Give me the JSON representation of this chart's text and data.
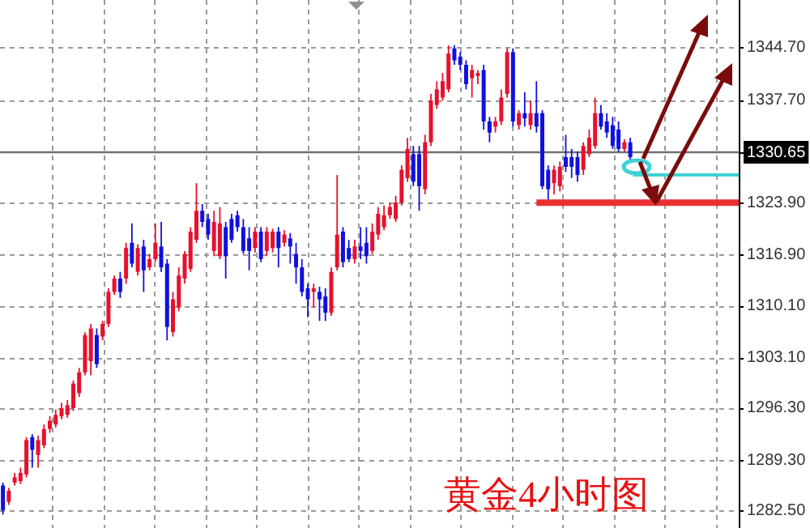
{
  "chart_data": {
    "type": "candlestick",
    "categories": [
      null,
      null,
      null,
      null,
      null,
      null,
      null,
      null,
      null,
      null,
      null,
      null,
      null,
      null,
      null,
      null,
      null,
      null,
      null,
      null,
      null,
      null,
      null,
      null,
      null,
      null,
      null,
      null,
      null,
      null,
      null,
      null,
      null,
      null,
      null,
      null,
      null,
      null,
      null,
      null,
      null,
      null,
      null,
      null,
      null,
      null,
      null,
      null,
      null,
      null,
      null,
      null,
      null,
      null,
      null,
      null,
      null,
      null,
      null,
      null,
      null,
      null,
      null,
      null,
      null,
      null,
      null,
      null,
      null,
      null,
      null,
      null,
      null,
      null,
      null,
      null,
      null,
      null,
      null,
      null,
      null,
      null,
      null,
      null,
      null,
      null,
      null,
      null,
      null,
      null,
      null,
      null,
      null,
      null,
      null,
      null,
      null,
      null,
      null,
      null,
      null,
      null,
      null,
      null,
      null,
      null,
      null,
      null,
      null,
      null,
      null,
      null,
      null,
      null,
      null,
      null,
      null,
      null,
      null,
      null,
      null,
      null,
      null,
      null,
      null,
      null
    ],
    "ohlc": [
      [
        1285.9,
        1286.3,
        1282.0,
        1282.6
      ],
      [
        1283.7,
        1285.6,
        1283.3,
        1285.2
      ],
      [
        1286.3,
        1287.6,
        1285.9,
        1287.0
      ],
      [
        1286.5,
        1288.3,
        1286.1,
        1287.6
      ],
      [
        1287.4,
        1292.4,
        1287.0,
        1292.0
      ],
      [
        1292.4,
        1292.8,
        1288.3,
        1290.7
      ],
      [
        1290.0,
        1292.6,
        1288.3,
        1292.0
      ],
      [
        1291.3,
        1294.1,
        1290.9,
        1293.5
      ],
      [
        1293.5,
        1295.2,
        1293.0,
        1294.6
      ],
      [
        1294.1,
        1296.1,
        1293.7,
        1295.4
      ],
      [
        1295.2,
        1297.0,
        1294.8,
        1296.3
      ],
      [
        1295.4,
        1297.4,
        1295.0,
        1296.7
      ],
      [
        1296.3,
        1300.0,
        1295.9,
        1299.6
      ],
      [
        1298.3,
        1301.7,
        1297.8,
        1301.1
      ],
      [
        1301.1,
        1306.5,
        1300.7,
        1306.1
      ],
      [
        1302.6,
        1307.6,
        1300.7,
        1307.0
      ],
      [
        1306.1,
        1307.0,
        1301.7,
        1302.2
      ],
      [
        1305.9,
        1308.0,
        1305.4,
        1307.6
      ],
      [
        1307.6,
        1312.4,
        1307.2,
        1311.9
      ],
      [
        1311.9,
        1314.1,
        1311.5,
        1313.7
      ],
      [
        1313.7,
        1314.6,
        1311.1,
        1311.9
      ],
      [
        1313.7,
        1318.5,
        1313.0,
        1317.8
      ],
      [
        1318.5,
        1321.1,
        1315.2,
        1315.7
      ],
      [
        1314.6,
        1318.3,
        1314.1,
        1317.8
      ],
      [
        1318.0,
        1318.9,
        1311.9,
        1314.8
      ],
      [
        1315.2,
        1317.0,
        1314.8,
        1316.3
      ],
      [
        1316.3,
        1321.1,
        1315.9,
        1318.5
      ],
      [
        1318.0,
        1321.3,
        1314.6,
        1315.2
      ],
      [
        1315.7,
        1316.3,
        1305.4,
        1307.2
      ],
      [
        1306.5,
        1311.9,
        1305.9,
        1310.9
      ],
      [
        1309.8,
        1315.2,
        1309.3,
        1314.1
      ],
      [
        1313.7,
        1317.4,
        1313.0,
        1317.0
      ],
      [
        1315.0,
        1320.6,
        1314.6,
        1320.0
      ],
      [
        1318.9,
        1326.5,
        1318.5,
        1322.8
      ],
      [
        1322.8,
        1323.7,
        1320.6,
        1321.3
      ],
      [
        1321.7,
        1322.4,
        1318.9,
        1319.6
      ],
      [
        1317.4,
        1322.8,
        1316.7,
        1321.3
      ],
      [
        1316.7,
        1323.3,
        1316.3,
        1321.1
      ],
      [
        1320.6,
        1321.3,
        1313.7,
        1316.7
      ],
      [
        1321.7,
        1322.4,
        1318.5,
        1318.9
      ],
      [
        1322.2,
        1322.8,
        1320.0,
        1320.6
      ],
      [
        1320.6,
        1321.7,
        1317.0,
        1317.4
      ],
      [
        1319.1,
        1320.6,
        1314.8,
        1317.4
      ],
      [
        1317.8,
        1320.6,
        1317.2,
        1320.0
      ],
      [
        1320.0,
        1320.6,
        1315.9,
        1316.3
      ],
      [
        1317.4,
        1320.6,
        1316.7,
        1320.0
      ],
      [
        1317.8,
        1320.4,
        1317.2,
        1320.0
      ],
      [
        1320.0,
        1320.6,
        1315.2,
        1317.8
      ],
      [
        1318.5,
        1320.2,
        1318.0,
        1319.6
      ],
      [
        1319.1,
        1319.8,
        1315.7,
        1318.0
      ],
      [
        1317.0,
        1318.5,
        1313.0,
        1315.2
      ],
      [
        1315.2,
        1316.3,
        1311.3,
        1311.9
      ],
      [
        1312.4,
        1313.0,
        1308.5,
        1310.9
      ],
      [
        1311.9,
        1313.0,
        1309.8,
        1312.4
      ],
      [
        1311.9,
        1312.6,
        1308.0,
        1310.9
      ],
      [
        1311.3,
        1312.4,
        1308.0,
        1309.1
      ],
      [
        1309.1,
        1315.2,
        1308.7,
        1314.6
      ],
      [
        1315.2,
        1327.6,
        1314.8,
        1319.6
      ],
      [
        1320.0,
        1320.6,
        1315.2,
        1315.9
      ],
      [
        1317.8,
        1318.9,
        1315.9,
        1316.3
      ],
      [
        1316.3,
        1318.9,
        1315.7,
        1318.0
      ],
      [
        1318.0,
        1320.6,
        1316.3,
        1317.4
      ],
      [
        1318.5,
        1320.6,
        1315.7,
        1316.7
      ],
      [
        1317.4,
        1321.1,
        1317.0,
        1320.0
      ],
      [
        1319.6,
        1323.3,
        1318.9,
        1322.4
      ],
      [
        1320.6,
        1323.5,
        1320.2,
        1322.2
      ],
      [
        1322.2,
        1323.9,
        1321.7,
        1323.3
      ],
      [
        1321.7,
        1324.8,
        1321.3,
        1323.9
      ],
      [
        1323.9,
        1328.9,
        1323.5,
        1328.3
      ],
      [
        1327.2,
        1332.6,
        1326.7,
        1331.1
      ],
      [
        1330.4,
        1331.5,
        1326.1,
        1326.7
      ],
      [
        1330.4,
        1331.5,
        1322.8,
        1326.1
      ],
      [
        1325.7,
        1333.0,
        1325.0,
        1332.0
      ],
      [
        1332.0,
        1338.5,
        1331.5,
        1337.6
      ],
      [
        1337.0,
        1340.2,
        1336.5,
        1339.1
      ],
      [
        1338.0,
        1341.3,
        1337.6,
        1340.2
      ],
      [
        1339.1,
        1345.0,
        1338.7,
        1343.9
      ],
      [
        1344.6,
        1345.0,
        1342.4,
        1343.0
      ],
      [
        1343.5,
        1344.1,
        1341.7,
        1342.4
      ],
      [
        1342.4,
        1343.0,
        1339.1,
        1339.8
      ],
      [
        1340.6,
        1342.4,
        1338.0,
        1341.7
      ],
      [
        1340.9,
        1341.7,
        1339.8,
        1341.3
      ],
      [
        1341.7,
        1342.4,
        1333.7,
        1334.8
      ],
      [
        1334.8,
        1335.4,
        1332.0,
        1333.3
      ],
      [
        1334.1,
        1335.4,
        1333.3,
        1334.8
      ],
      [
        1334.8,
        1339.1,
        1334.3,
        1338.0
      ],
      [
        1338.5,
        1344.6,
        1338.0,
        1344.1
      ],
      [
        1344.1,
        1344.6,
        1334.1,
        1334.8
      ],
      [
        1334.3,
        1336.3,
        1333.7,
        1335.9
      ],
      [
        1335.9,
        1338.7,
        1334.1,
        1335.2
      ],
      [
        1334.3,
        1337.6,
        1333.7,
        1335.9
      ],
      [
        1335.9,
        1340.2,
        1333.3,
        1334.1
      ],
      [
        1335.9,
        1336.3,
        1325.7,
        1326.1
      ],
      [
        1328.3,
        1328.9,
        1324.3,
        1325.7
      ],
      [
        1326.5,
        1328.9,
        1325.0,
        1328.3
      ],
      [
        1326.1,
        1329.4,
        1325.4,
        1328.7
      ],
      [
        1330.0,
        1333.0,
        1328.0,
        1328.7
      ],
      [
        1330.0,
        1331.1,
        1327.2,
        1328.7
      ],
      [
        1330.0,
        1330.7,
        1326.7,
        1327.6
      ],
      [
        1328.3,
        1332.0,
        1327.6,
        1331.5
      ],
      [
        1330.4,
        1333.7,
        1330.0,
        1332.6
      ],
      [
        1331.5,
        1338.0,
        1331.1,
        1335.9
      ],
      [
        1335.9,
        1337.0,
        1333.7,
        1334.1
      ],
      [
        1334.8,
        1335.9,
        1332.6,
        1333.3
      ],
      [
        1334.3,
        1335.4,
        1331.1,
        1331.5
      ],
      [
        1333.7,
        1334.8,
        1330.7,
        1331.1
      ],
      [
        1331.1,
        1332.4,
        1330.7,
        1332.0
      ],
      [
        1332.0,
        1332.6,
        1329.4,
        1330.0
      ],
      null,
      null,
      null,
      null,
      null,
      null,
      null,
      null,
      null,
      null,
      null,
      null,
      null,
      null,
      null,
      null,
      null,
      null
    ],
    "colors": [
      "#1010e0",
      "#e8102c",
      "#e8102c",
      "#e8102c",
      "#e8102c",
      "#1010e0",
      "#e8102c",
      "#e8102c",
      "#e8102c",
      "#e8102c",
      "#e8102c",
      "#e8102c",
      "#e8102c",
      "#e8102c",
      "#e8102c",
      "#e8102c",
      "#1010e0",
      "#e8102c",
      "#e8102c",
      "#e8102c",
      "#1010e0",
      "#e8102c",
      "#1010e0",
      "#e8102c",
      "#1010e0",
      "#e8102c",
      "#e8102c",
      "#1010e0",
      "#1010e0",
      "#e8102c",
      "#e8102c",
      "#e8102c",
      "#e8102c",
      "#e8102c",
      "#1010e0",
      "#1010e0",
      "#e8102c",
      "#e8102c",
      "#1010e0",
      "#1010e0",
      "#1010e0",
      "#1010e0",
      "#1010e0",
      "#e8102c",
      "#1010e0",
      "#e8102c",
      "#e8102c",
      "#1010e0",
      "#e8102c",
      "#1010e0",
      "#1010e0",
      "#1010e0",
      "#1010e0",
      "#e8102c",
      "#1010e0",
      "#1010e0",
      "#e8102c",
      "#e8102c",
      "#1010e0",
      "#1010e0",
      "#e8102c",
      "#1010e0",
      "#1010e0",
      "#e8102c",
      "#e8102c",
      "#e8102c",
      "#e8102c",
      "#e8102c",
      "#e8102c",
      "#e8102c",
      "#1010e0",
      "#1010e0",
      "#e8102c",
      "#e8102c",
      "#e8102c",
      "#e8102c",
      "#e8102c",
      "#1010e0",
      "#1010e0",
      "#1010e0",
      "#e8102c",
      "#e8102c",
      "#1010e0",
      "#1010e0",
      "#e8102c",
      "#e8102c",
      "#e8102c",
      "#1010e0",
      "#e8102c",
      "#1010e0",
      "#e8102c",
      "#1010e0",
      "#1010e0",
      "#1010e0",
      "#e8102c",
      "#e8102c",
      "#1010e0",
      "#1010e0",
      "#1010e0",
      "#e8102c",
      "#e8102c",
      "#e8102c",
      "#1010e0",
      "#1010e0",
      "#1010e0",
      "#1010e0",
      "#e8102c",
      "#1010e0",
      null,
      null,
      null,
      null,
      null,
      null,
      null,
      null,
      null,
      null,
      null,
      null,
      null,
      null,
      null,
      null,
      null,
      null
    ],
    "ref_lines": [
      {
        "axis": "y",
        "value": 1330.65,
        "color": "#707070"
      },
      {
        "axis": "y",
        "value": 1323.9,
        "color": "#e83030"
      },
      {
        "axis": "y",
        "value": 1327.6,
        "color": "#40d0d8"
      }
    ],
    "ylim": [
      1280.2,
      1351.1
    ],
    "yticks": [
      {
        "value": 1344.7,
        "label": "1344.70"
      },
      {
        "value": 1337.7,
        "label": "1337.70"
      },
      {
        "value": 1330.65,
        "label": "1330.65"
      },
      {
        "value": 1323.9,
        "label": "1323.90"
      },
      {
        "value": 1316.9,
        "label": "1316.90"
      },
      {
        "value": 1310.1,
        "label": "1310.10"
      },
      {
        "value": 1303.1,
        "label": "1303.10"
      },
      {
        "value": 1296.3,
        "label": "1296.30"
      },
      {
        "value": 1289.3,
        "label": "1289.30"
      },
      {
        "value": 1282.5,
        "label": "1282.50"
      }
    ],
    "grid": true,
    "tick_labels": "y",
    "annotations": [
      "黄金4小时图"
    ]
  }
}
